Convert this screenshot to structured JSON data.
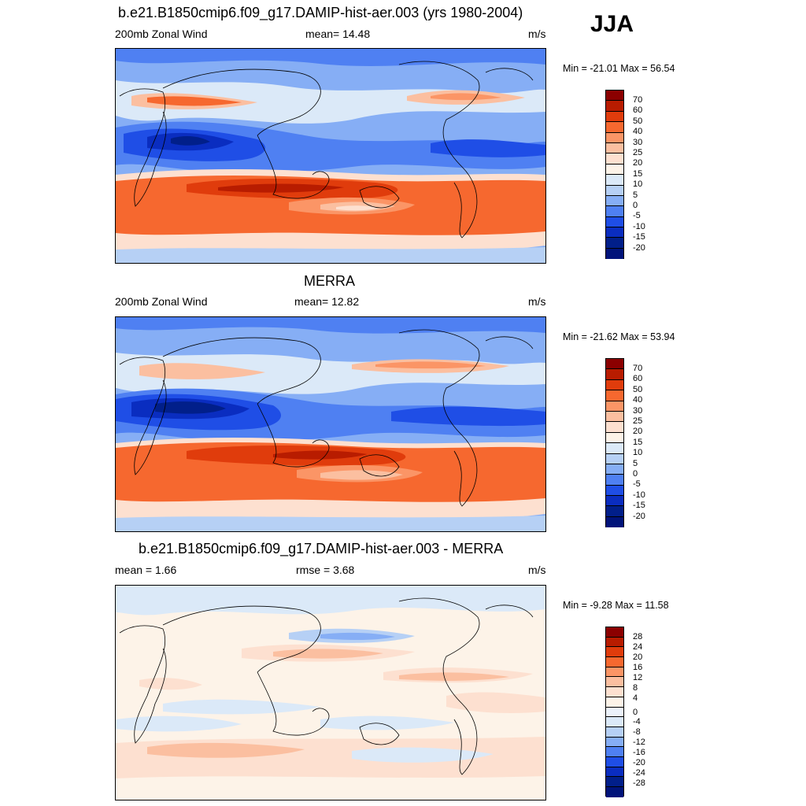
{
  "season": "JJA",
  "panels": [
    {
      "title": "b.e21.B1850cmip6.f09_g17.DAMIP-hist-aer.003 (yrs 1980-2004)",
      "left_label": "200mb Zonal Wind",
      "center_label": "mean=  14.48",
      "right_label": "m/s",
      "minmax": "Min = -21.01 Max =  56.54",
      "ticks": [
        "70",
        "60",
        "50",
        "40",
        "30",
        "25",
        "20",
        "15",
        "10",
        "5",
        "0",
        "-5",
        "-10",
        "-15",
        "-20"
      ]
    },
    {
      "title": "MERRA",
      "left_label": "200mb Zonal Wind",
      "center_label": "mean=  12.82",
      "right_label": "m/s",
      "minmax": "Min = -21.62 Max =  53.94",
      "ticks": [
        "70",
        "60",
        "50",
        "40",
        "30",
        "25",
        "20",
        "15",
        "10",
        "5",
        "0",
        "-5",
        "-10",
        "-15",
        "-20"
      ]
    },
    {
      "title": "b.e21.B1850cmip6.f09_g17.DAMIP-hist-aer.003 - MERRA",
      "left_label": "mean =   1.66",
      "center_label": "rmse =   3.68",
      "right_label": "m/s",
      "minmax": "Min =  -9.28 Max =  11.58",
      "ticks": [
        "28",
        "24",
        "20",
        "16",
        "12",
        "8",
        "4",
        "0",
        "-4",
        "-8",
        "-12",
        "-16",
        "-20",
        "-24",
        "-28"
      ]
    }
  ],
  "colors": {
    "abs_scale": [
      "#8b0000",
      "#b81c00",
      "#e03c0c",
      "#f6682f",
      "#fb9566",
      "#fbbfa0",
      "#fde0d0",
      "#fdf3e8",
      "#dbe9f8",
      "#b6d0f5",
      "#86aef5",
      "#4f80f2",
      "#1f4ee6",
      "#0a2dc0",
      "#011f8a",
      "#00137a"
    ],
    "diff_scale": [
      "#8b0000",
      "#b81c00",
      "#e03c0c",
      "#f6682f",
      "#fb9566",
      "#fbbfa0",
      "#fde0d0",
      "#fdf3e8",
      "#ecf2fb",
      "#dbe9f8",
      "#b6d0f5",
      "#86aef5",
      "#4f80f2",
      "#1f4ee6",
      "#0a2dc0",
      "#011f8a",
      "#00137a"
    ]
  }
}
